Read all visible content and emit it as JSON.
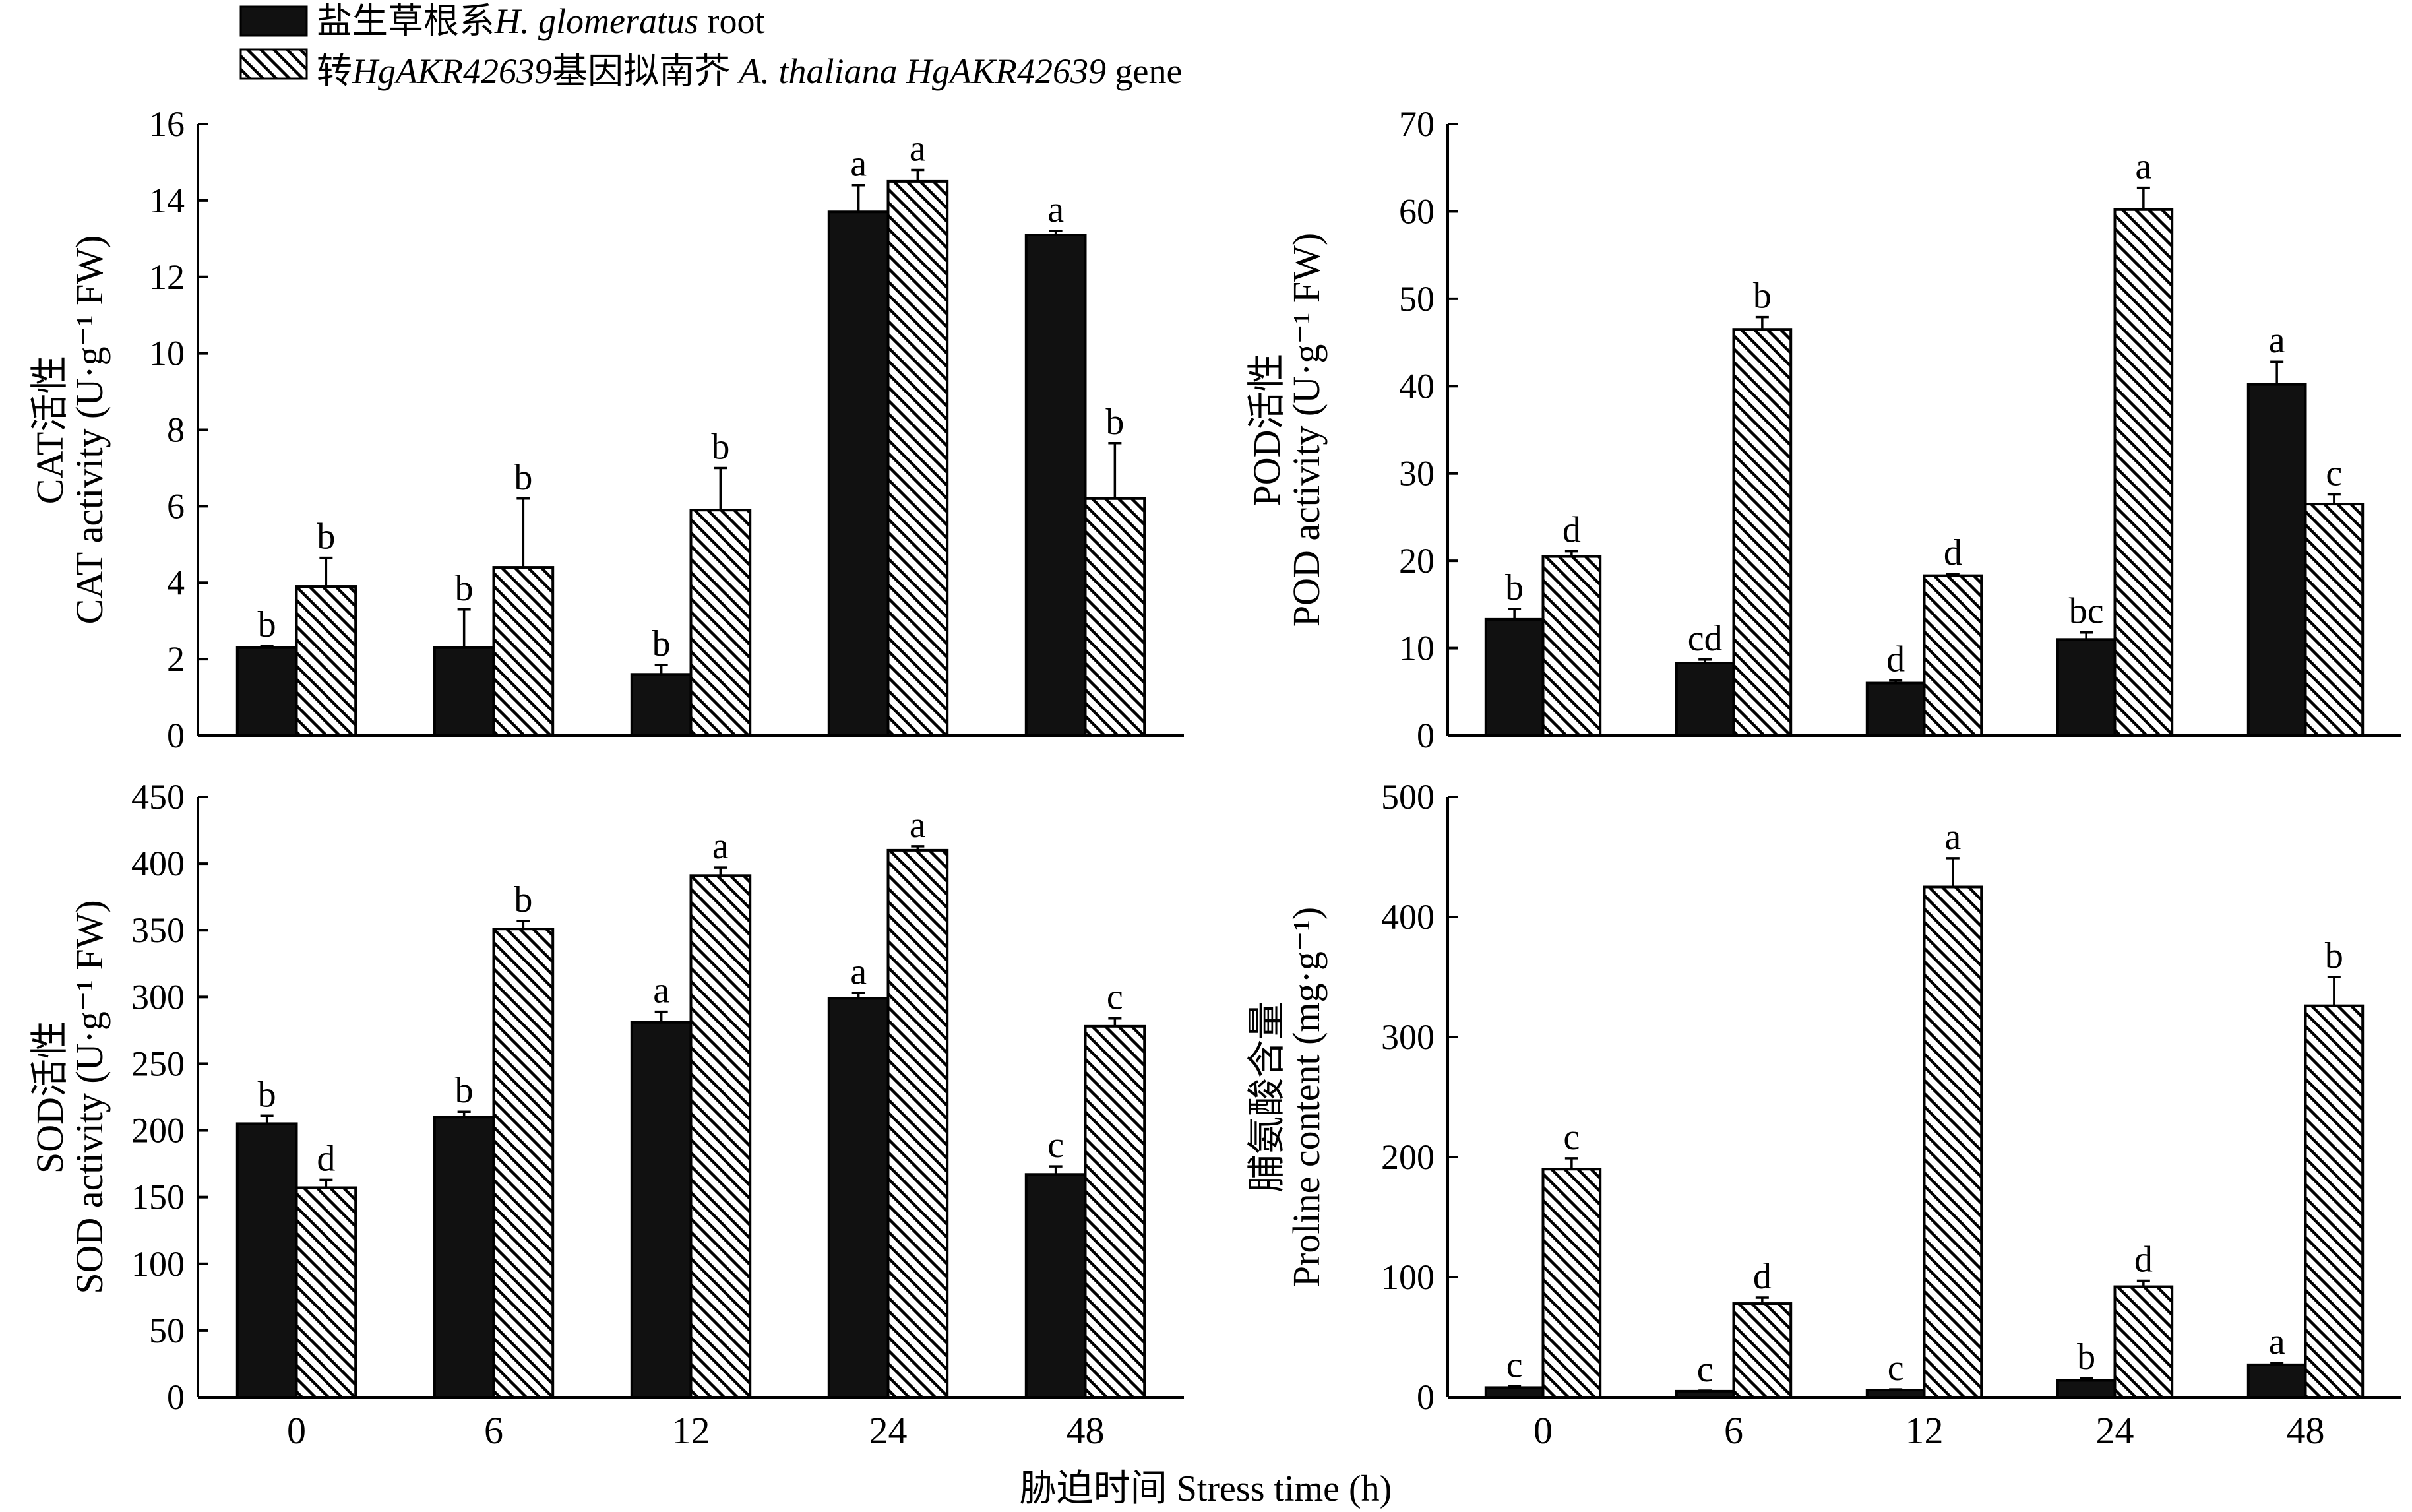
{
  "legend": {
    "series1_cn": "盐生草根系",
    "series1_en_italic": "H. glomeratus",
    "series1_en_suffix": " root",
    "series2_cn_prefix": "转",
    "series2_gene_italic": "HgAKR42639",
    "series2_cn_suffix": "基因拟南芥",
    "series2_species_italic": "A. thaliana HgAKR42639",
    "series2_en_suffix": " gene"
  },
  "shared_xlabel": "胁迫时间 Stress time (h)",
  "colors": {
    "series1": "#111111",
    "series2_hatch": "#000000",
    "background": "#ffffff"
  },
  "chart_data": [
    {
      "id": "cat",
      "type": "bar",
      "ylabel_cn": "CAT活性",
      "ylabel_en": "CAT activity (U·g⁻¹ FW)",
      "categories": [
        "0",
        "6",
        "12",
        "24",
        "48"
      ],
      "ylim": [
        0,
        16
      ],
      "yticks": [
        0,
        2,
        4,
        6,
        8,
        10,
        12,
        14,
        16
      ],
      "series": [
        {
          "name": "H. glomeratus root",
          "values": [
            2.3,
            2.3,
            1.6,
            13.7,
            13.1
          ],
          "errors": [
            0.05,
            1.0,
            0.25,
            0.7,
            0.1
          ],
          "letters": [
            "b",
            "b",
            "b",
            "a",
            "a"
          ]
        },
        {
          "name": "A. thaliana HgAKR42639 gene",
          "values": [
            3.9,
            4.4,
            5.9,
            14.5,
            6.2
          ],
          "errors": [
            0.75,
            1.8,
            1.1,
            0.3,
            1.45
          ],
          "letters": [
            "b",
            "b",
            "b",
            "a",
            "b"
          ]
        }
      ]
    },
    {
      "id": "pod",
      "type": "bar",
      "ylabel_cn": "POD活性",
      "ylabel_en": "POD activity (U·g⁻¹ FW)",
      "categories": [
        "0",
        "6",
        "12",
        "24",
        "48"
      ],
      "ylim": [
        0,
        70
      ],
      "yticks": [
        0,
        10,
        20,
        30,
        40,
        50,
        60,
        70
      ],
      "series": [
        {
          "name": "H. glomeratus root",
          "values": [
            13.3,
            8.3,
            6.0,
            11.0,
            40.2
          ],
          "errors": [
            1.2,
            0.4,
            0.3,
            0.8,
            2.6
          ],
          "letters": [
            "b",
            "cd",
            "d",
            "bc",
            "a"
          ]
        },
        {
          "name": "A. thaliana HgAKR42639 gene",
          "values": [
            20.5,
            46.5,
            18.3,
            60.2,
            26.5
          ],
          "errors": [
            0.6,
            1.4,
            0.2,
            2.5,
            1.1
          ],
          "letters": [
            "d",
            "b",
            "d",
            "a",
            "c"
          ]
        }
      ]
    },
    {
      "id": "sod",
      "type": "bar",
      "ylabel_cn": "SOD活性",
      "ylabel_en": "SOD activity (U·g⁻¹ FW)",
      "categories": [
        "0",
        "6",
        "12",
        "24",
        "48"
      ],
      "ylim": [
        0,
        450
      ],
      "yticks": [
        0,
        50,
        100,
        150,
        200,
        250,
        300,
        350,
        400,
        450
      ],
      "series": [
        {
          "name": "H. glomeratus root",
          "values": [
            205,
            210,
            281,
            299,
            167
          ],
          "errors": [
            6,
            4,
            8,
            4,
            6
          ],
          "letters": [
            "b",
            "b",
            "a",
            "a",
            "c"
          ]
        },
        {
          "name": "A. thaliana HgAKR42639 gene",
          "values": [
            157,
            351,
            391,
            410,
            278
          ],
          "errors": [
            6,
            6,
            6,
            3,
            6
          ],
          "letters": [
            "d",
            "b",
            "a",
            "a",
            "c"
          ]
        }
      ]
    },
    {
      "id": "proline",
      "type": "bar",
      "ylabel_cn": "脯氨酸含量",
      "ylabel_en": "Proline content (mg·g⁻¹)",
      "categories": [
        "0",
        "6",
        "12",
        "24",
        "48"
      ],
      "ylim": [
        0,
        500
      ],
      "yticks": [
        0,
        100,
        200,
        300,
        400,
        500
      ],
      "series": [
        {
          "name": "H. glomeratus root",
          "values": [
            8,
            5,
            6,
            14,
            27
          ],
          "errors": [
            1,
            0.5,
            0.5,
            2,
            1.5
          ],
          "letters": [
            "c",
            "c",
            "c",
            "b",
            "a"
          ]
        },
        {
          "name": "A. thaliana HgAKR42639 gene",
          "values": [
            190,
            78,
            425,
            92,
            326
          ],
          "errors": [
            9,
            5,
            24,
            5,
            24
          ],
          "letters": [
            "c",
            "d",
            "a",
            "d",
            "b"
          ]
        }
      ]
    }
  ]
}
